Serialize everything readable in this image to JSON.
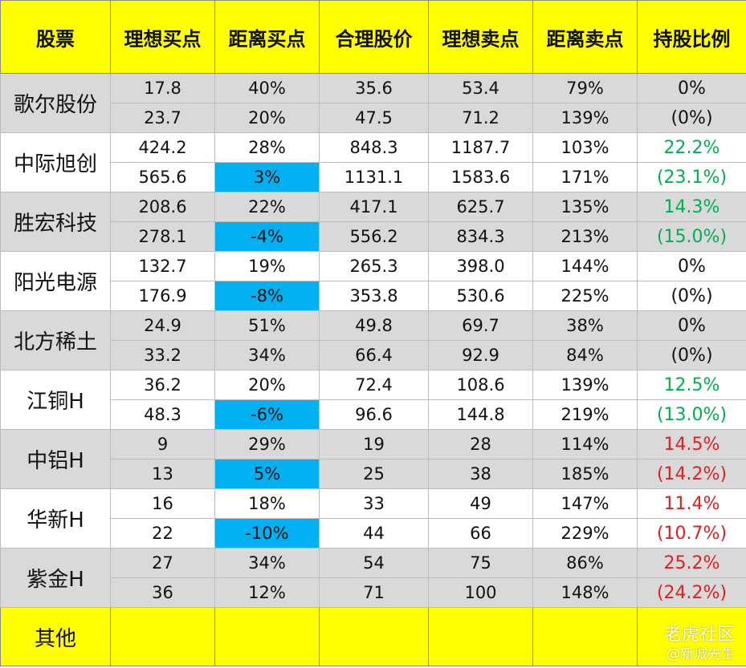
{
  "headers": [
    "股票",
    "理想买点",
    "距离买点",
    "合理股价",
    "理想卖点",
    "距离卖点",
    "持股比例"
  ],
  "stocks": [
    {
      "name": "歌尔股份",
      "shade": "g",
      "ratio_color": "neu",
      "ratio1": "0%",
      "ratio2": "(0%)",
      "rows": [
        [
          "17.8",
          "40%",
          "35.6",
          "53.4",
          "79%"
        ],
        [
          "23.7",
          "20%",
          "47.5",
          "71.2",
          "139%"
        ]
      ],
      "highlight": []
    },
    {
      "name": "中际旭创",
      "shade": "w",
      "ratio_color": "pos",
      "ratio1": "22.2%",
      "ratio2": "(23.1%)",
      "rows": [
        [
          "424.2",
          "28%",
          "848.3",
          "1187.7",
          "103%"
        ],
        [
          "565.6",
          "3%",
          "1131.1",
          "1583.6",
          "171%"
        ]
      ],
      "highlight": [
        1
      ]
    },
    {
      "name": "胜宏科技",
      "shade": "g",
      "ratio_color": "pos",
      "ratio1": "14.3%",
      "ratio2": "(15.0%)",
      "rows": [
        [
          "208.6",
          "22%",
          "417.1",
          "625.7",
          "135%"
        ],
        [
          "278.1",
          "-4%",
          "556.2",
          "834.3",
          "213%"
        ]
      ],
      "highlight": [
        1
      ]
    },
    {
      "name": "阳光电源",
      "shade": "w",
      "ratio_color": "neu",
      "ratio1": "0%",
      "ratio2": "(0%)",
      "rows": [
        [
          "132.7",
          "19%",
          "265.3",
          "398.0",
          "144%"
        ],
        [
          "176.9",
          "-8%",
          "353.8",
          "530.6",
          "225%"
        ]
      ],
      "highlight": [
        1
      ]
    },
    {
      "name": "北方稀土",
      "shade": "g",
      "ratio_color": "neu",
      "ratio1": "0%",
      "ratio2": "(0%)",
      "rows": [
        [
          "24.9",
          "51%",
          "49.8",
          "69.7",
          "38%"
        ],
        [
          "33.2",
          "34%",
          "66.4",
          "92.9",
          "84%"
        ]
      ],
      "highlight": []
    },
    {
      "name": "江铜H",
      "shade": "w",
      "ratio_color": "pos",
      "ratio1": "12.5%",
      "ratio2": "(13.0%)",
      "rows": [
        [
          "36.2",
          "20%",
          "72.4",
          "108.6",
          "139%"
        ],
        [
          "48.3",
          "-6%",
          "96.6",
          "144.8",
          "219%"
        ]
      ],
      "highlight": [
        1
      ]
    },
    {
      "name": "中铝H",
      "shade": "g",
      "ratio_color": "neg",
      "ratio1": "14.5%",
      "ratio2": "(14.2%)",
      "rows": [
        [
          "9",
          "29%",
          "19",
          "28",
          "114%"
        ],
        [
          "13",
          "5%",
          "25",
          "38",
          "185%"
        ]
      ],
      "highlight": [
        1
      ]
    },
    {
      "name": "华新H",
      "shade": "w",
      "ratio_color": "neg",
      "ratio1": "11.4%",
      "ratio2": "(10.7%)",
      "rows": [
        [
          "16",
          "18%",
          "33",
          "49",
          "147%"
        ],
        [
          "22",
          "-10%",
          "44",
          "66",
          "229%"
        ]
      ],
      "highlight": [
        1
      ]
    },
    {
      "name": "紫金H",
      "shade": "g",
      "ratio_color": "neg",
      "ratio1": "25.2%",
      "ratio2": "(24.2%)",
      "rows": [
        [
          "27",
          "34%",
          "54",
          "75",
          "86%"
        ],
        [
          "36",
          "12%",
          "71",
          "100",
          "148%"
        ]
      ],
      "highlight": []
    }
  ],
  "other": {
    "name": "其他"
  },
  "watermark": {
    "line1": "老虎社区",
    "line2": "@新城先生"
  }
}
